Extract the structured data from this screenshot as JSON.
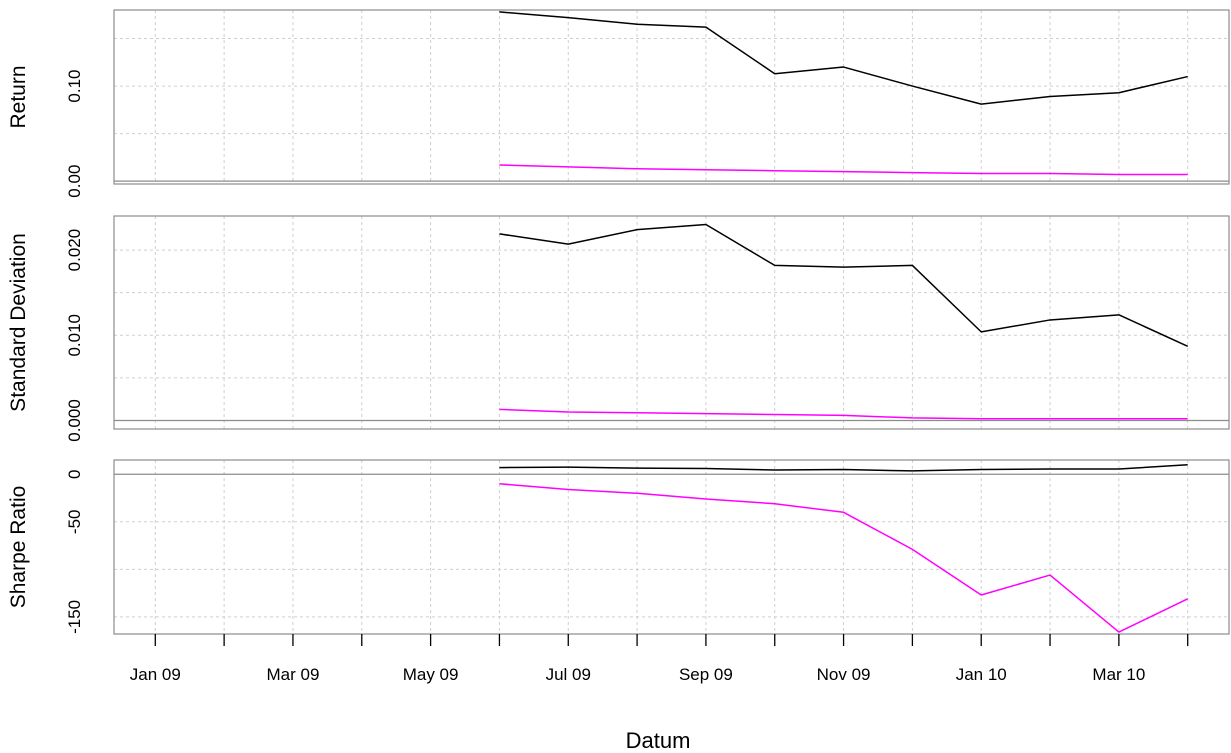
{
  "chart_data": {
    "type": "line",
    "xlabel": "Datum",
    "x_ticks": [
      "Jan 09",
      "Mar 09",
      "May 09",
      "Jul 09",
      "Sep 09",
      "Nov 09",
      "Jan 10",
      "Mar 10"
    ],
    "x_range": [
      "2009-01",
      "2010-04"
    ],
    "x": [
      "2009-06",
      "2009-07",
      "2009-08",
      "2009-09",
      "2009-10",
      "2009-11",
      "2009-12",
      "2010-01",
      "2010-02",
      "2010-03",
      "2010-04"
    ],
    "grid": true,
    "series_colors": [
      "#000000",
      "#ff00ff"
    ],
    "panels": [
      {
        "ylabel": "Return",
        "yticks": [
          "0.00",
          "0.10"
        ],
        "ylim": [
          -0.003,
          0.18
        ],
        "series": [
          {
            "color": "#000000",
            "values": [
              0.178,
              0.172,
              0.165,
              0.162,
              0.113,
              0.12,
              0.1,
              0.081,
              0.089,
              0.093,
              0.11
            ]
          },
          {
            "color": "#ff00ff",
            "values": [
              0.017,
              0.015,
              0.013,
              0.012,
              0.011,
              0.01,
              0.009,
              0.008,
              0.008,
              0.007,
              0.007
            ]
          }
        ]
      },
      {
        "ylabel": "Standard Deviation",
        "yticks": [
          "0.000",
          "0.010",
          "0.020"
        ],
        "ylim": [
          -0.001,
          0.024
        ],
        "series": [
          {
            "color": "#000000",
            "values": [
              0.0219,
              0.0207,
              0.0224,
              0.023,
              0.0182,
              0.018,
              0.0182,
              0.0104,
              0.0118,
              0.0124,
              0.0087
            ]
          },
          {
            "color": "#ff00ff",
            "values": [
              0.0013,
              0.001,
              0.0009,
              0.0008,
              0.0007,
              0.0006,
              0.0003,
              0.0002,
              0.0002,
              0.0002,
              0.0002
            ]
          }
        ]
      },
      {
        "ylabel": "Sharpe Ratio",
        "yticks": [
          "0",
          "-50",
          "-150"
        ],
        "ylim": [
          -168,
          15
        ],
        "series": [
          {
            "color": "#000000",
            "values": [
              7,
              7.5,
              6.5,
              6,
              4.5,
              5,
              3.5,
              5,
              5.5,
              5.5,
              10
            ]
          },
          {
            "color": "#ff00ff",
            "values": [
              -10,
              -16,
              -20,
              -26,
              -31,
              -40,
              -79,
              -127,
              -106,
              -166,
              -131
            ]
          }
        ]
      }
    ]
  }
}
